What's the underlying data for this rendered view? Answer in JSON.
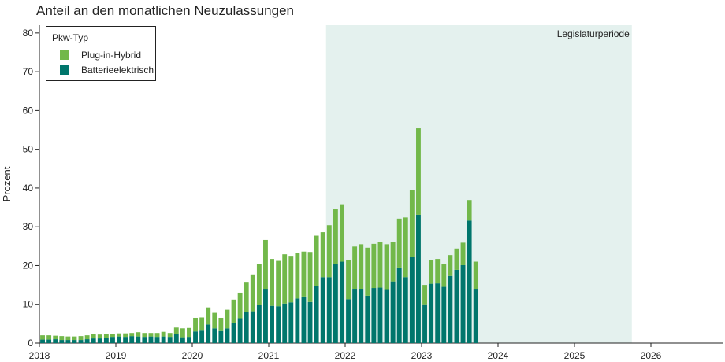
{
  "colors": {
    "phev": "#72b84a",
    "bev": "#00766c",
    "period": "#e4f1ee"
  },
  "chart_data": {
    "type": "bar",
    "stacked": true,
    "title": "Anteil an den monatlichen Neuzulassungen",
    "ylabel": "Prozent",
    "xlabel": "",
    "ylim": [
      0,
      82
    ],
    "yticks": [
      0,
      10,
      20,
      30,
      40,
      50,
      60,
      70,
      80
    ],
    "xlim": [
      "2018-01",
      "2026-12"
    ],
    "xticks": [
      "2018",
      "2019",
      "2020",
      "2021",
      "2022",
      "2023",
      "2024",
      "2025",
      "2026"
    ],
    "legend": {
      "title": "Pkw-Typ",
      "placement": "top-left",
      "entries": [
        "Plug-in-Hybrid",
        "Batterieelektrisch"
      ]
    },
    "highlight": {
      "label": "Legislaturperiode",
      "start": "2021-10",
      "end": "2025-09"
    },
    "categories": [
      "2018-01",
      "2018-02",
      "2018-03",
      "2018-04",
      "2018-05",
      "2018-06",
      "2018-07",
      "2018-08",
      "2018-09",
      "2018-10",
      "2018-11",
      "2018-12",
      "2019-01",
      "2019-02",
      "2019-03",
      "2019-04",
      "2019-05",
      "2019-06",
      "2019-07",
      "2019-08",
      "2019-09",
      "2019-10",
      "2019-11",
      "2019-12",
      "2020-01",
      "2020-02",
      "2020-03",
      "2020-04",
      "2020-05",
      "2020-06",
      "2020-07",
      "2020-08",
      "2020-09",
      "2020-10",
      "2020-11",
      "2020-12",
      "2021-01",
      "2021-02",
      "2021-03",
      "2021-04",
      "2021-05",
      "2021-06",
      "2021-07",
      "2021-08",
      "2021-09",
      "2021-10",
      "2021-11",
      "2021-12",
      "2022-01",
      "2022-02",
      "2022-03",
      "2022-04",
      "2022-05",
      "2022-06",
      "2022-07",
      "2022-08",
      "2022-09",
      "2022-10",
      "2022-11",
      "2022-12",
      "2023-01",
      "2023-02",
      "2023-03",
      "2023-04",
      "2023-05",
      "2023-06",
      "2023-07",
      "2023-08",
      "2023-09"
    ],
    "series": [
      {
        "name": "Batterieelektrisch",
        "values": [
          0.9,
          0.9,
          1.0,
          0.8,
          0.8,
          0.8,
          0.8,
          1.0,
          1.2,
          1.2,
          1.3,
          1.6,
          1.7,
          1.6,
          1.8,
          1.7,
          1.6,
          1.7,
          1.6,
          1.7,
          1.6,
          2.3,
          1.5,
          1.6,
          3.0,
          3.4,
          4.8,
          3.8,
          3.3,
          3.8,
          5.2,
          6.4,
          8.0,
          8.2,
          9.8,
          14.0,
          9.6,
          9.5,
          10.2,
          10.5,
          11.5,
          12.0,
          10.6,
          14.8,
          17.0,
          17.0,
          20.3,
          21.0,
          11.3,
          14.0,
          14.0,
          12.2,
          14.2,
          14.3,
          13.9,
          15.9,
          19.5,
          17.0,
          22.3,
          33.1,
          10.0,
          15.3,
          15.4,
          14.5,
          17.3,
          18.9,
          20.1,
          31.6,
          14.0
        ]
      },
      {
        "name": "Plug-in-Hybrid",
        "values": [
          1.1,
          1.1,
          0.9,
          1.0,
          0.9,
          0.9,
          1.0,
          1.0,
          1.1,
          1.0,
          1.0,
          0.8,
          0.8,
          0.9,
          0.8,
          1.1,
          1.0,
          0.9,
          1.0,
          1.2,
          1.0,
          1.7,
          2.3,
          2.3,
          3.5,
          3.2,
          4.4,
          4.0,
          3.2,
          4.8,
          6.0,
          6.6,
          7.8,
          9.5,
          10.7,
          12.6,
          12.1,
          11.7,
          12.7,
          12.0,
          11.8,
          11.6,
          12.9,
          12.9,
          11.6,
          13.4,
          14.2,
          14.8,
          10.2,
          10.9,
          11.5,
          12.4,
          11.4,
          11.8,
          11.6,
          10.2,
          12.6,
          15.4,
          17.1,
          22.3,
          5.0,
          6.1,
          6.3,
          5.9,
          5.4,
          5.5,
          5.8,
          5.3,
          7.0
        ]
      }
    ]
  }
}
